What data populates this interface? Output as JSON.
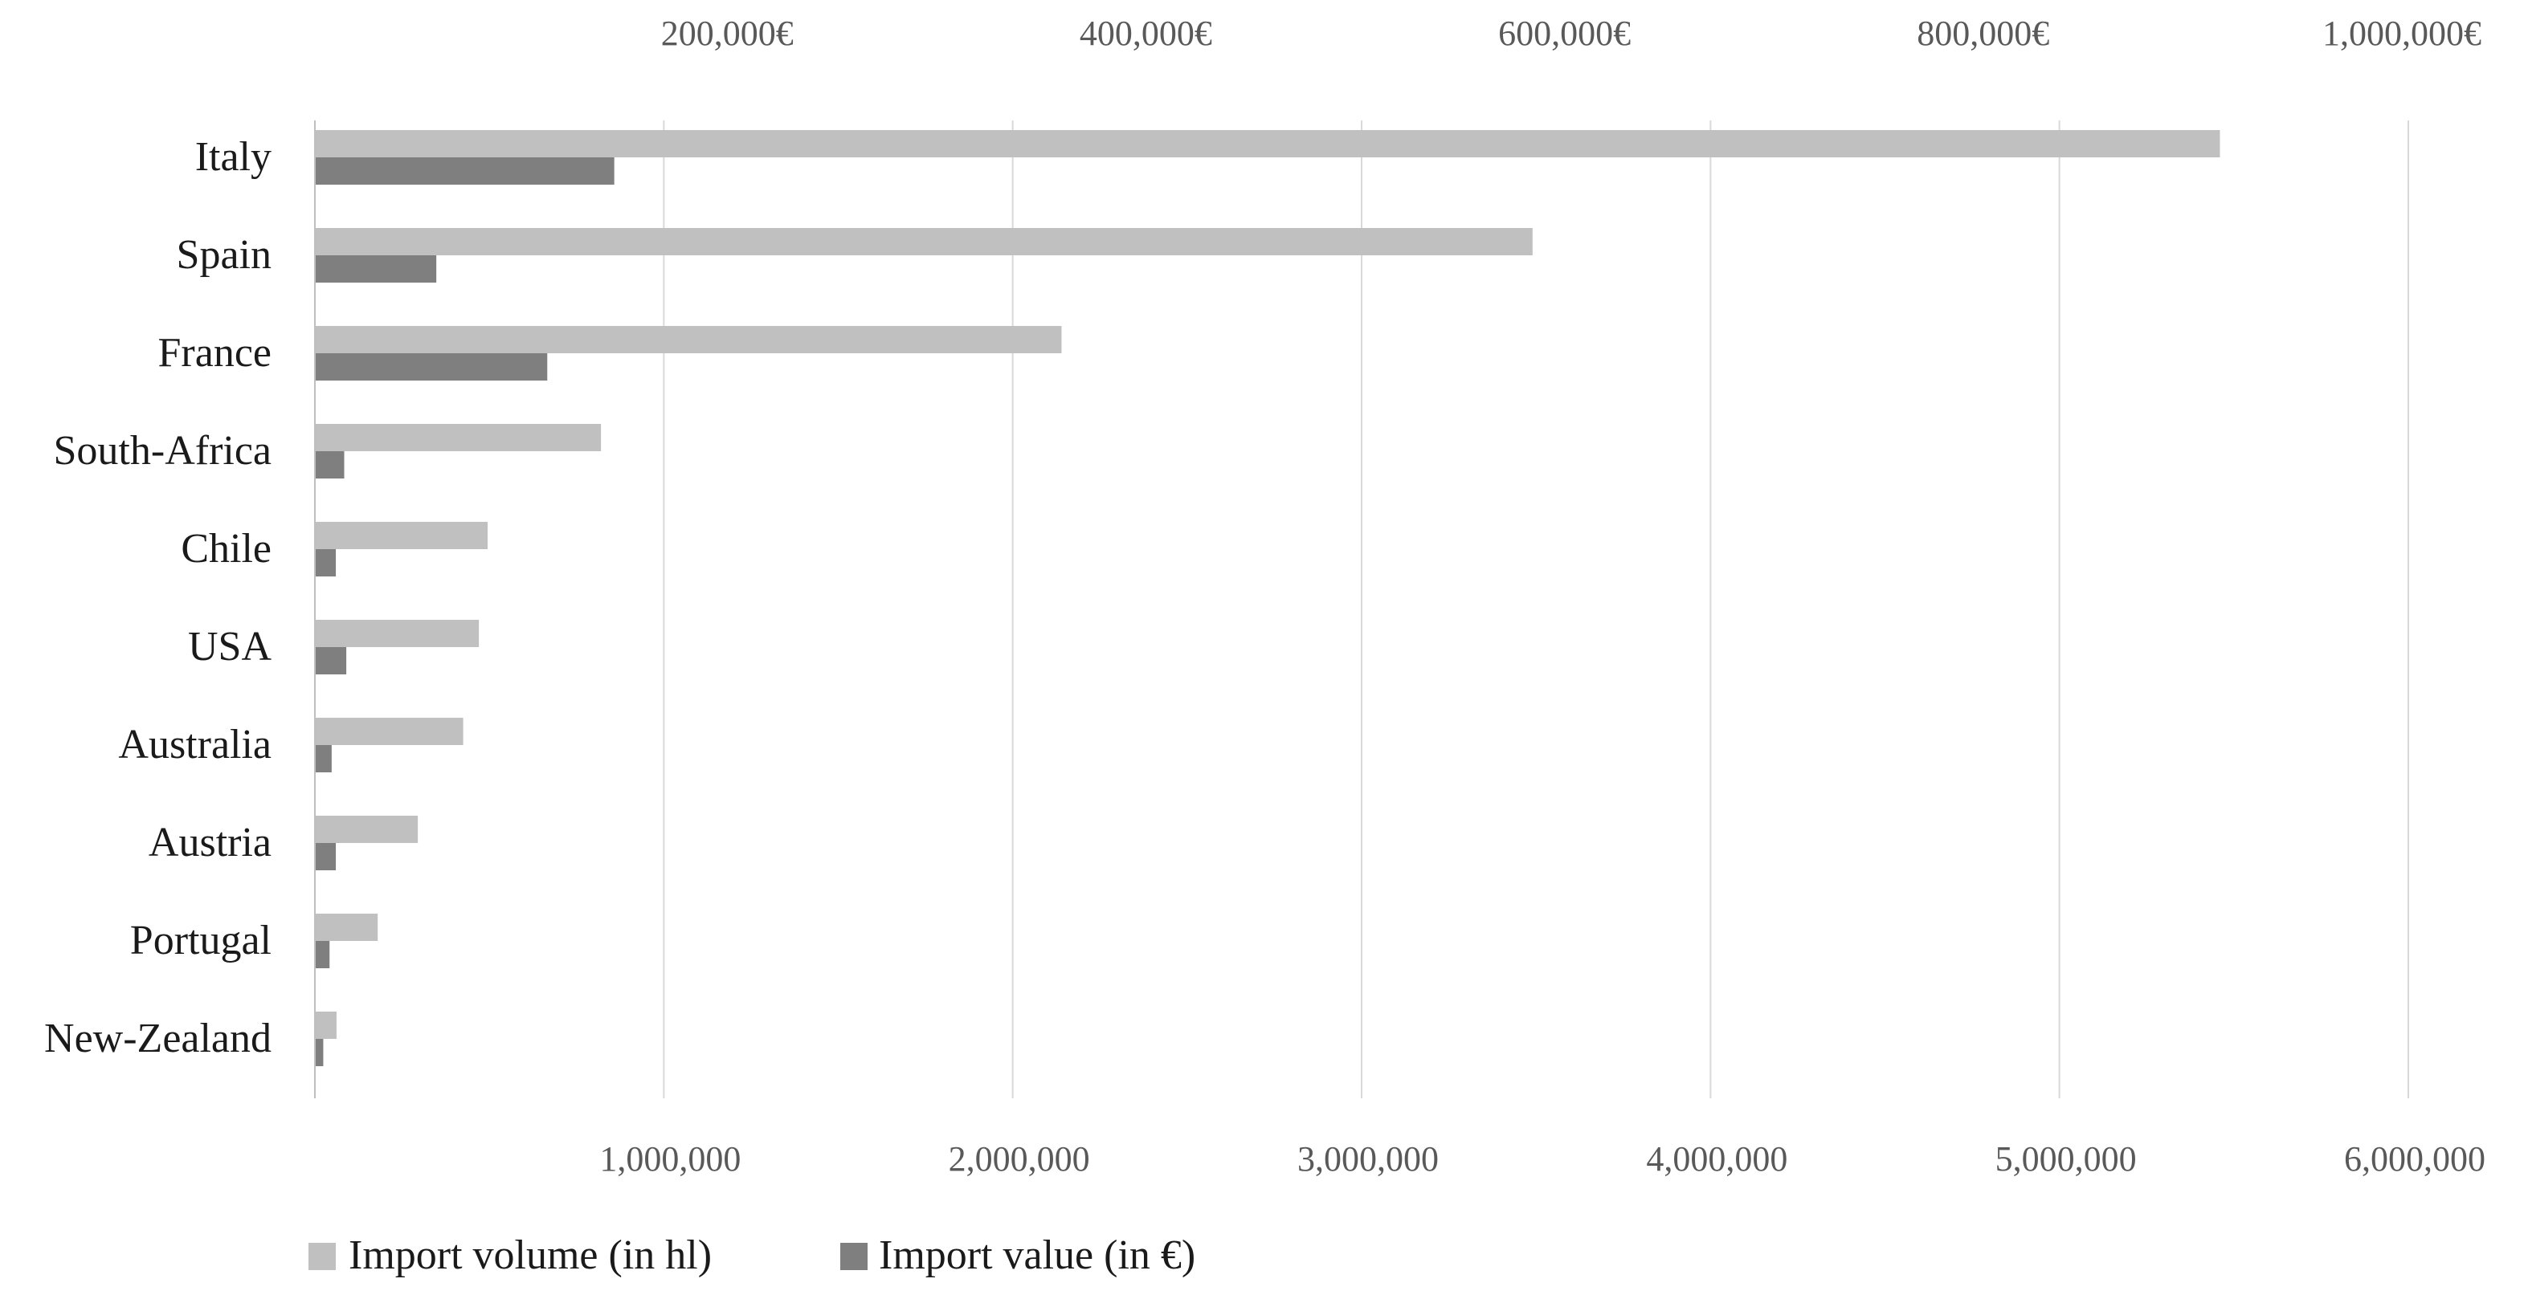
{
  "chart_data": {
    "type": "bar",
    "orientation": "horizontal",
    "title": "",
    "categories": [
      "Italy",
      "Spain",
      "France",
      "South-Africa",
      "Chile",
      "USA",
      "Australia",
      "Austria",
      "Portugal",
      "New-Zealand"
    ],
    "series": [
      {
        "name": "Import volume (in hl)",
        "axis": "bottom",
        "color": "#c0c0c0",
        "values": [
          5460000,
          3490000,
          2140000,
          820000,
          495000,
          470000,
          425000,
          295000,
          180000,
          62000
        ]
      },
      {
        "name": "Import value (in €)",
        "axis": "top",
        "color": "#7f7f7f",
        "values": [
          143000,
          58000,
          111000,
          14000,
          10000,
          15000,
          8000,
          10000,
          7000,
          4000
        ]
      }
    ],
    "x_bottom": {
      "label": "",
      "lim": [
        0,
        6000000
      ],
      "ticks": [
        1000000,
        2000000,
        3000000,
        4000000,
        5000000,
        6000000
      ],
      "tick_labels": [
        "1,000,000",
        "2,000,000",
        "3,000,000",
        "4,000,000",
        "5,000,000",
        "6,000,000"
      ]
    },
    "x_top": {
      "label": "",
      "lim": [
        0,
        1000000
      ],
      "ticks": [
        200000,
        400000,
        600000,
        800000,
        1000000
      ],
      "tick_labels": [
        "200,000€",
        "400,000€",
        "600,000€",
        "800,000€",
        "1,000,000€"
      ]
    },
    "grid": true,
    "legend": "bottom-left",
    "colors": {
      "volume": "#c0c0c0",
      "value": "#7f7f7f",
      "grid": "#d9d9d9",
      "axis": "#bfbfbf"
    }
  }
}
